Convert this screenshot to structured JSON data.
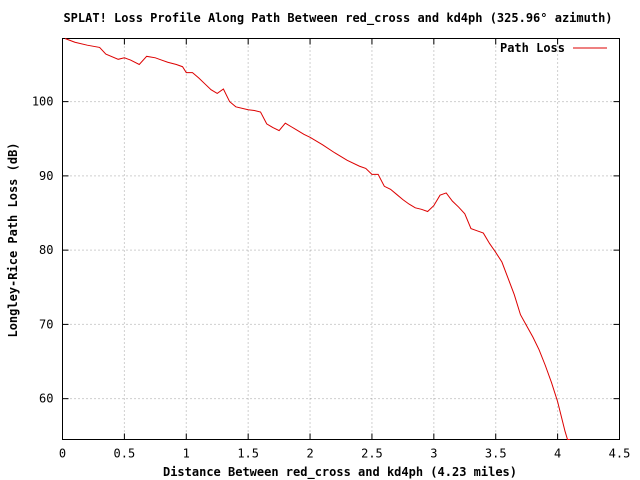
{
  "chart_data": {
    "type": "line",
    "title": "SPLAT! Loss Profile Along Path Between red_cross and kd4ph (325.96° azimuth)",
    "xlabel": "Distance Between red_cross and kd4ph (4.23 miles)",
    "ylabel": "Longley-Rice Path Loss (dB)",
    "xlim": [
      0,
      4.5
    ],
    "ylim": [
      54.5,
      108.5
    ],
    "xticks": [
      0,
      0.5,
      1,
      1.5,
      2,
      2.5,
      3,
      3.5,
      4,
      4.5
    ],
    "xtick_labels": [
      "0",
      "0.5",
      "1",
      "1.5",
      "2",
      "2.5",
      "3",
      "3.5",
      "4",
      "4.5"
    ],
    "yticks": [
      60,
      70,
      80,
      90,
      100
    ],
    "ytick_labels": [
      "60",
      "70",
      "80",
      "90",
      "100"
    ],
    "grid": true,
    "legend_position": "top-right",
    "series": [
      {
        "name": "Path Loss",
        "color": "#dd0000",
        "x": [
          0.02,
          0.1,
          0.2,
          0.3,
          0.35,
          0.45,
          0.5,
          0.55,
          0.62,
          0.68,
          0.75,
          0.8,
          0.85,
          0.92,
          0.97,
          1.0,
          1.05,
          1.1,
          1.15,
          1.2,
          1.25,
          1.3,
          1.35,
          1.4,
          1.5,
          1.55,
          1.6,
          1.65,
          1.7,
          1.75,
          1.8,
          1.85,
          1.9,
          1.95,
          2.0,
          2.1,
          2.2,
          2.3,
          2.4,
          2.45,
          2.5,
          2.55,
          2.6,
          2.65,
          2.7,
          2.75,
          2.8,
          2.85,
          2.9,
          2.95,
          3.0,
          3.05,
          3.1,
          3.15,
          3.2,
          3.25,
          3.3,
          3.35,
          3.4,
          3.45,
          3.5,
          3.55,
          3.6,
          3.65,
          3.7,
          3.75,
          3.8,
          3.85,
          3.9,
          3.95,
          4.0,
          4.03,
          4.06,
          4.08,
          4.1
        ],
        "values": [
          108.5,
          108.0,
          107.6,
          107.3,
          106.4,
          105.7,
          105.9,
          105.6,
          105.0,
          106.1,
          105.9,
          105.6,
          105.3,
          105.0,
          104.7,
          103.9,
          103.9,
          103.2,
          102.4,
          101.6,
          101.1,
          101.7,
          100.0,
          99.3,
          98.9,
          98.8,
          98.6,
          97.0,
          96.5,
          96.1,
          97.1,
          96.6,
          96.1,
          95.6,
          95.2,
          94.2,
          93.1,
          92.1,
          91.3,
          91.0,
          90.2,
          90.2,
          88.6,
          88.2,
          87.5,
          86.8,
          86.2,
          85.7,
          85.5,
          85.2,
          86.0,
          87.4,
          87.7,
          86.6,
          85.8,
          84.9,
          82.9,
          82.6,
          82.3,
          80.9,
          79.7,
          78.4,
          76.2,
          74.0,
          71.3,
          69.8,
          68.3,
          66.6,
          64.5,
          62.2,
          59.6,
          57.6,
          55.6,
          54.5,
          54.5
        ]
      }
    ]
  }
}
